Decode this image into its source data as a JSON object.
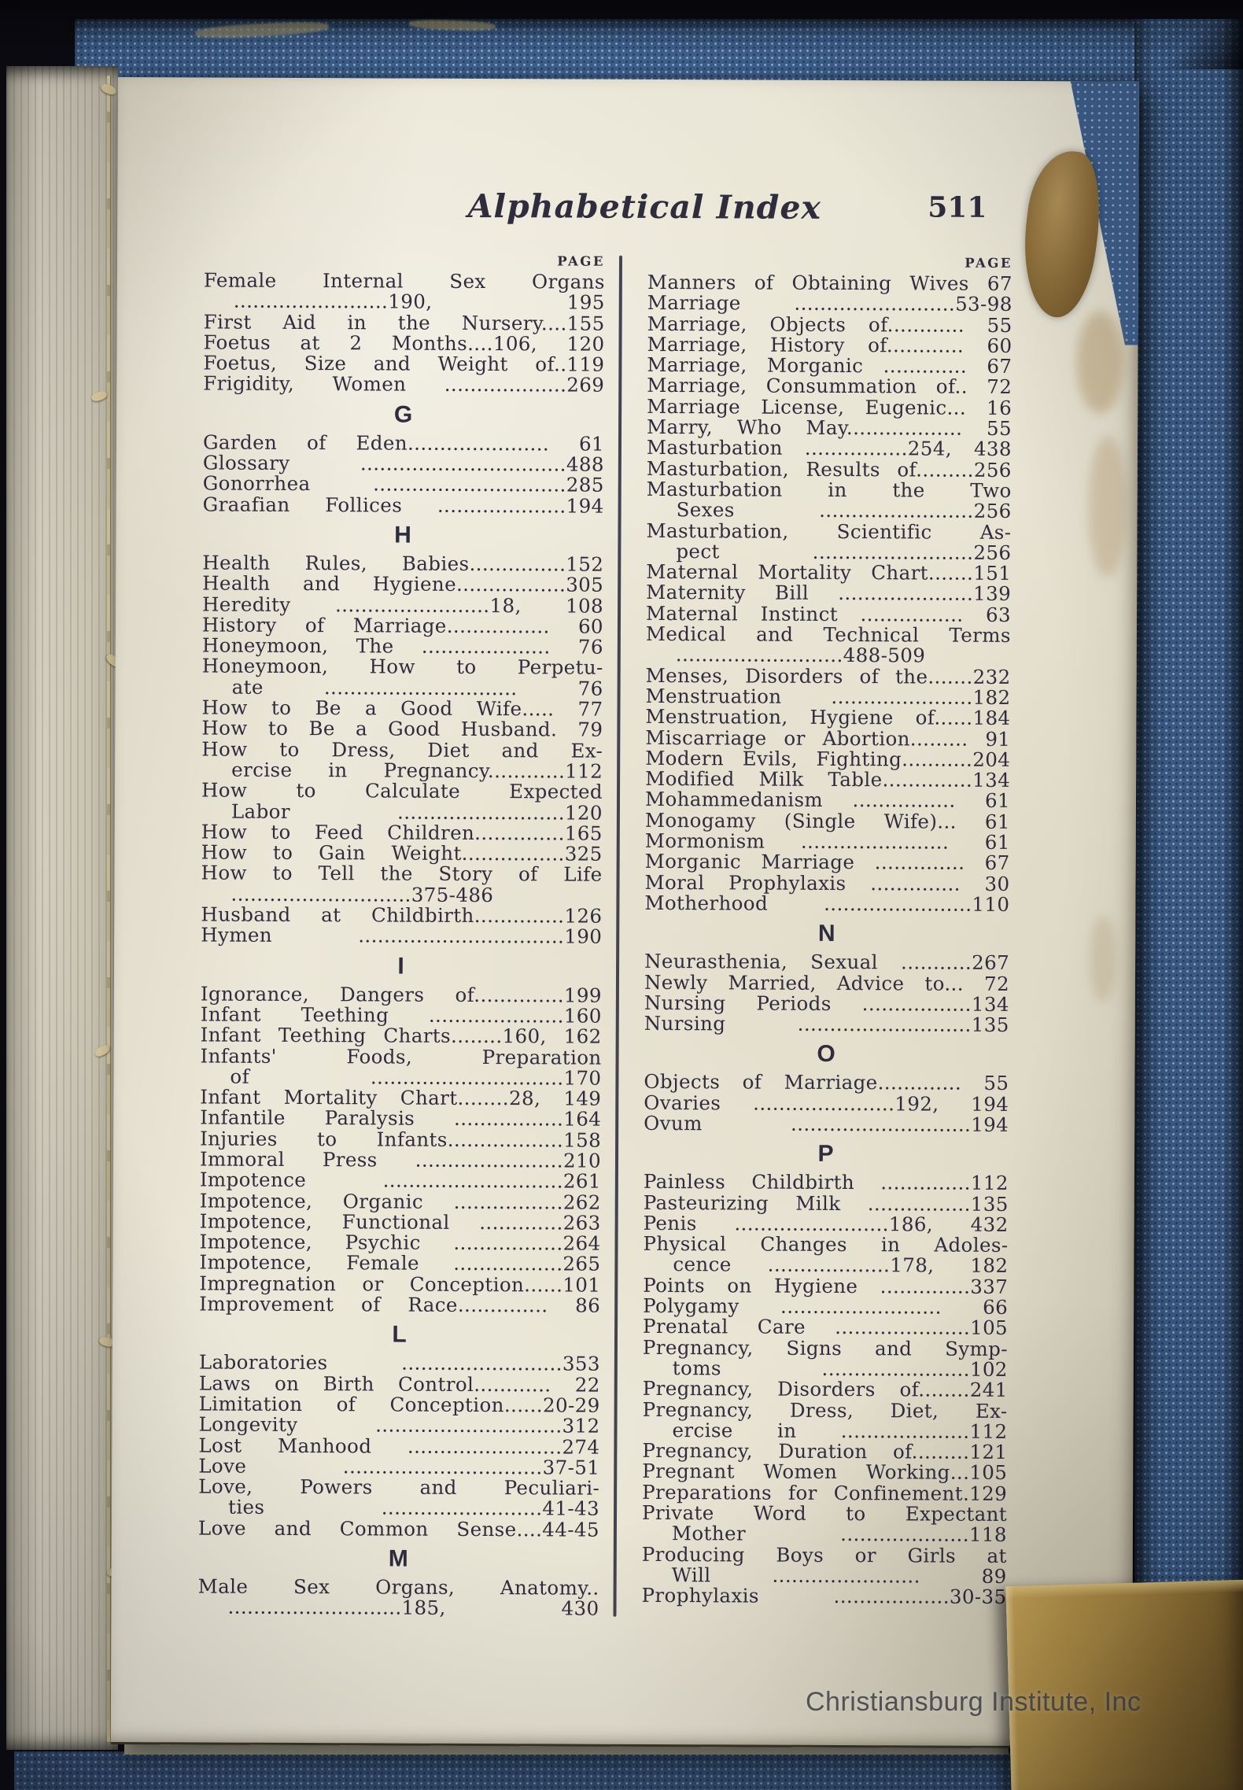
{
  "watermark": "Christiansburg Institute, Inc",
  "colors": {
    "ink": "#2e2c3d",
    "paper": "#eae6d7",
    "cover": "#3d5f8c",
    "brass": "#ab8a41",
    "thread": "#d6c79b"
  },
  "page": {
    "title": "Alphabetical Index",
    "page_number": "511"
  },
  "columns": [
    {
      "side": "left",
      "page_label": "PAGE",
      "sections": [
        {
          "letter": "",
          "entries": [
            [
              "Female Internal Sex Organs",
              "........................190, 195"
            ],
            [
              "First Aid in the Nursery....155"
            ],
            [
              "Foetus at 2 Months....106, 120"
            ],
            [
              "Foetus, Size and Weight of..119"
            ],
            [
              "Frigidity, Women ...................269"
            ]
          ]
        },
        {
          "letter": "G",
          "entries": [
            [
              "Garden of Eden...................... 61"
            ],
            [
              "Glossary ................................488"
            ],
            [
              "Gonorrhea ..............................285"
            ],
            [
              "Graafian Follices ....................194"
            ]
          ]
        },
        {
          "letter": "H",
          "entries": [
            [
              "Health Rules, Babies...............152"
            ],
            [
              "Health and Hygiene.................305"
            ],
            [
              "Heredity ........................18, 108"
            ],
            [
              "History of Marriage................ 60"
            ],
            [
              "Honeymoon, The .................... 76"
            ],
            [
              "Honeymoon, How to Perpetu-",
              "ate .............................. 76"
            ],
            [
              "How to Be a Good Wife..... 77"
            ],
            [
              "How to Be a Good Husband. 79"
            ],
            [
              "How to Dress, Diet and Ex-",
              "ercise in Pregnancy............112"
            ],
            [
              "How to Calculate Expected",
              "Labor ..........................120"
            ],
            [
              "How to Feed Children..............165"
            ],
            [
              "How to Gain Weight................325"
            ],
            [
              "How to Tell the Story of Life",
              "............................375-486"
            ],
            [
              "Husband at Childbirth..............126"
            ],
            [
              "Hymen ................................190"
            ]
          ]
        },
        {
          "letter": "I",
          "entries": [
            [
              "Ignorance, Dangers of..............199"
            ],
            [
              "Infant Teething .....................160"
            ],
            [
              "Infant Teething Charts........160, 162"
            ],
            [
              "Infants' Foods, Preparation",
              "of ..............................170"
            ],
            [
              "Infant Mortality Chart........28, 149"
            ],
            [
              "Infantile Paralysis .................164"
            ],
            [
              "Injuries to Infants..................158"
            ],
            [
              "Immoral Press .......................210"
            ],
            [
              "Impotence ............................261"
            ],
            [
              "Impotence, Organic .................262"
            ],
            [
              "Impotence, Functional .............263"
            ],
            [
              "Impotence, Psychic .................264"
            ],
            [
              "Impotence, Female .................265"
            ],
            [
              "Impregnation or Conception......101"
            ],
            [
              "Improvement of Race.............. 86"
            ]
          ]
        },
        {
          "letter": "L",
          "entries": [
            [
              "Laboratories .........................353"
            ],
            [
              "Laws on Birth Control............ 22"
            ],
            [
              "Limitation of Conception......20-29"
            ],
            [
              "Longevity .............................312"
            ],
            [
              "Lost Manhood ........................274"
            ],
            [
              "Love ...............................37-51"
            ],
            [
              "Love, Powers and Peculiari-",
              "ties .........................41-43"
            ],
            [
              "Love and Common Sense....44-45"
            ]
          ]
        },
        {
          "letter": "M",
          "entries": [
            [
              "Male Sex Organs, Anatomy..",
              "...........................185, 430"
            ]
          ]
        }
      ]
    },
    {
      "side": "right",
      "page_label": "PAGE",
      "sections": [
        {
          "letter": "",
          "entries": [
            [
              "Manners of Obtaining Wives 67"
            ],
            [
              "Marriage .........................53-98"
            ],
            [
              "Marriage, Objects of............ 55"
            ],
            [
              "Marriage, History of............ 60"
            ],
            [
              "Marriage, Morganic ............. 67"
            ],
            [
              "Marriage, Consummation of.. 72"
            ],
            [
              "Marriage License, Eugenic... 16"
            ],
            [
              "Marry, Who May.................. 55"
            ],
            [
              "Masturbation ................254, 438"
            ],
            [
              "Masturbation, Results of.........256"
            ],
            [
              "Masturbation in the Two",
              "Sexes ........................256"
            ],
            [
              "Masturbation, Scientific As-",
              "pect .........................256"
            ],
            [
              "Maternal Mortality Chart.......151"
            ],
            [
              "Maternity Bill .....................139"
            ],
            [
              "Maternal Instinct ................ 63"
            ],
            [
              "Medical and Technical Terms",
              "..........................488-509"
            ],
            [
              "Menses, Disorders of the.......232"
            ],
            [
              "Menstruation ......................182"
            ],
            [
              "Menstruation, Hygiene of......184"
            ],
            [
              "Miscarriage or Abortion......... 91"
            ],
            [
              "Modern Evils, Fighting...........204"
            ],
            [
              "Modified Milk Table..............134"
            ],
            [
              "Mohammedanism ................ 61"
            ],
            [
              "Monogamy (Single Wife)... 61"
            ],
            [
              "Mormonism ....................... 61"
            ],
            [
              "Morganic Marriage .............. 67"
            ],
            [
              "Moral Prophylaxis .............. 30"
            ],
            [
              "Motherhood .......................110"
            ]
          ]
        },
        {
          "letter": "N",
          "entries": [
            [
              "Neurasthenia, Sexual ...........267"
            ],
            [
              "Newly Married, Advice to... 72"
            ],
            [
              "Nursing Periods .................134"
            ],
            [
              "Nursing ...........................135"
            ]
          ]
        },
        {
          "letter": "O",
          "entries": [
            [
              "Objects of Marriage............. 55"
            ],
            [
              "Ovaries ......................192, 194"
            ],
            [
              "Ovum ............................194"
            ]
          ]
        },
        {
          "letter": "P",
          "entries": [
            [
              "Painless Childbirth ..............112"
            ],
            [
              "Pasteurizing Milk ................135"
            ],
            [
              "Penis ........................186, 432"
            ],
            [
              "Physical Changes in Adoles-",
              "cence ...................178, 182"
            ],
            [
              "Points on Hygiene ..............337"
            ],
            [
              "Polygamy ......................... 66"
            ],
            [
              "Prenatal Care .....................105"
            ],
            [
              "Pregnancy, Signs and Symp-",
              "toms .......................102"
            ],
            [
              "Pregnancy, Disorders of........241"
            ],
            [
              "Pregnancy, Dress, Diet, Ex-",
              "ercise in ....................112"
            ],
            [
              "Pregnancy, Duration of.........121"
            ],
            [
              "Pregnant Women Working...105"
            ],
            [
              "Preparations for Confinement.129"
            ],
            [
              "Private Word to Expectant",
              "Mother ....................118"
            ],
            [
              "Producing Boys or Girls at",
              "Will ....................... 89"
            ],
            [
              "Prophylaxis ..................30-35"
            ]
          ]
        }
      ]
    }
  ]
}
